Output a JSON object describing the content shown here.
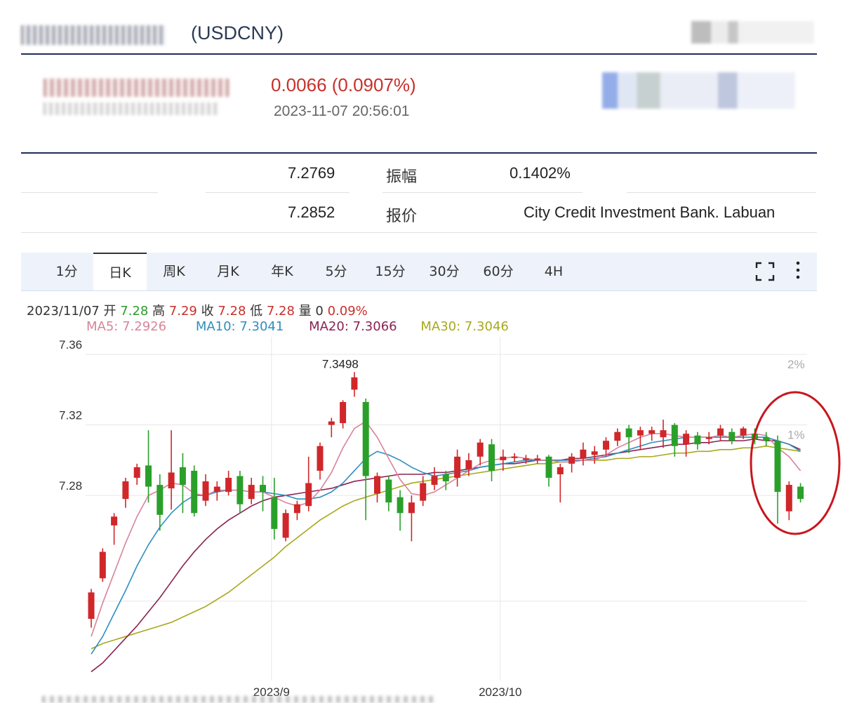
{
  "header": {
    "code": "(USDCNY)"
  },
  "quote": {
    "change": "0.0066 (0.0907%)",
    "datetime": "2023-11-07 20:56:01"
  },
  "stats": {
    "row1": {
      "value": "7.2769",
      "label": "振幅",
      "value2": "0.1402%"
    },
    "row2": {
      "value": "7.2852",
      "label": "报价",
      "value2": "City Credit Investment Bank. Labuan"
    }
  },
  "tabs": [
    {
      "label": "1分"
    },
    {
      "label": "日K"
    },
    {
      "label": "周K"
    },
    {
      "label": "月K"
    },
    {
      "label": "年K"
    },
    {
      "label": "5分"
    },
    {
      "label": "15分"
    },
    {
      "label": "30分"
    },
    {
      "label": "60分"
    },
    {
      "label": "4H"
    }
  ],
  "active_tab": "日K",
  "info": {
    "date": "2023/11/07",
    "open_label": "开",
    "open": "7.28",
    "high_label": "高",
    "high": "7.29",
    "close_label": "收",
    "close": "7.28",
    "low_label": "低",
    "low": "7.28",
    "vol_label": "量",
    "vol": "0",
    "pct": "0.09%"
  },
  "ma": {
    "ma5": "MA5: 7.2926",
    "ma10": "MA10: 7.3041",
    "ma20": "MA20: 7.3066",
    "ma30": "MA30: 7.3046"
  },
  "colors": {
    "up": "#d0272a",
    "down": "#2aa02a",
    "ma5": "#d8849a",
    "ma10": "#2f8fbf",
    "ma20": "#8b2252",
    "ma30": "#a8a81c",
    "header_rule": "#1f2e58",
    "highlight_circle": "#c8161d"
  },
  "icons": {
    "expand": "expand-icon",
    "more": "more-vertical-icon"
  },
  "chart_data": {
    "type": "candlestick",
    "y_ticks": [
      "7.36",
      "7.32",
      "7.28"
    ],
    "ylim": [
      7.175,
      7.37
    ],
    "x_ticks": [
      {
        "label": "2023/9",
        "index": 16
      },
      {
        "label": "2023/10",
        "index": 36
      }
    ],
    "right_ticks": [
      "2%",
      "1%"
    ],
    "annotation_max": "7.3498",
    "highlight_circle": true,
    "candles": [
      [
        7.21,
        7.225,
        7.205,
        7.227
      ],
      [
        7.233,
        7.248,
        7.231,
        7.25
      ],
      [
        7.263,
        7.268,
        7.252,
        7.27
      ],
      [
        7.278,
        7.288,
        7.273,
        7.29
      ],
      [
        7.29,
        7.296,
        7.286,
        7.298
      ],
      [
        7.297,
        7.285,
        7.276,
        7.317
      ],
      [
        7.286,
        7.269,
        7.26,
        7.292
      ],
      [
        7.284,
        7.293,
        7.272,
        7.317
      ],
      [
        7.296,
        7.286,
        7.27,
        7.304
      ],
      [
        7.294,
        7.27,
        7.268,
        7.297
      ],
      [
        7.277,
        7.288,
        7.274,
        7.292
      ],
      [
        7.282,
        7.285,
        7.277,
        7.288
      ],
      [
        7.282,
        7.29,
        7.28,
        7.294
      ],
      [
        7.291,
        7.275,
        7.27,
        7.294
      ],
      [
        7.278,
        7.286,
        7.275,
        7.29
      ],
      [
        7.286,
        7.282,
        7.271,
        7.291
      ],
      [
        7.279,
        7.261,
        7.255,
        7.29
      ],
      [
        7.256,
        7.27,
        7.254,
        7.272
      ],
      [
        7.27,
        7.275,
        7.266,
        7.277
      ],
      [
        7.274,
        7.287,
        7.271,
        7.302
      ],
      [
        7.294,
        7.308,
        7.289,
        7.31
      ],
      [
        7.32,
        7.322,
        7.313,
        7.324
      ],
      [
        7.321,
        7.333,
        7.318,
        7.334
      ],
      [
        7.34,
        7.347,
        7.336,
        7.35
      ],
      [
        7.333,
        7.291,
        7.266,
        7.335
      ],
      [
        7.281,
        7.291,
        7.276,
        7.293
      ],
      [
        7.289,
        7.276,
        7.271,
        7.291
      ],
      [
        7.279,
        7.27,
        7.26,
        7.283
      ],
      [
        7.27,
        7.276,
        7.254,
        7.28
      ],
      [
        7.277,
        7.287,
        7.274,
        7.291
      ],
      [
        7.286,
        7.291,
        7.283,
        7.296
      ],
      [
        7.292,
        7.288,
        7.283,
        7.294
      ],
      [
        7.29,
        7.302,
        7.285,
        7.306
      ],
      [
        7.295,
        7.3,
        7.291,
        7.304
      ],
      [
        7.302,
        7.31,
        7.297,
        7.312
      ],
      [
        7.309,
        7.294,
        7.288,
        7.312
      ],
      [
        7.3,
        7.302,
        7.294,
        7.306
      ],
      [
        7.302,
        7.302,
        7.299,
        7.304
      ],
      [
        7.301,
        7.301,
        7.298,
        7.303
      ],
      [
        7.3,
        7.301,
        7.298,
        7.303
      ],
      [
        7.302,
        7.29,
        7.285,
        7.303
      ],
      [
        7.292,
        7.296,
        7.276,
        7.298
      ],
      [
        7.298,
        7.302,
        7.293,
        7.304
      ],
      [
        7.301,
        7.306,
        7.297,
        7.31
      ],
      [
        7.303,
        7.305,
        7.298,
        7.308
      ],
      [
        7.306,
        7.311,
        7.302,
        7.313
      ],
      [
        7.311,
        7.316,
        7.308,
        7.318
      ],
      [
        7.318,
        7.313,
        7.304,
        7.32
      ],
      [
        7.314,
        7.317,
        7.306,
        7.319
      ],
      [
        7.315,
        7.317,
        7.311,
        7.319
      ],
      [
        7.313,
        7.317,
        7.307,
        7.323
      ],
      [
        7.32,
        7.308,
        7.302,
        7.321
      ],
      [
        7.309,
        7.315,
        7.302,
        7.317
      ],
      [
        7.314,
        7.309,
        7.306,
        7.316
      ],
      [
        7.312,
        7.313,
        7.309,
        7.316
      ],
      [
        7.314,
        7.318,
        7.311,
        7.32
      ],
      [
        7.316,
        7.311,
        7.309,
        7.318
      ],
      [
        7.314,
        7.318,
        7.312,
        7.319
      ],
      [
        7.315,
        7.312,
        7.309,
        7.318
      ],
      [
        7.313,
        7.311,
        7.308,
        7.316
      ],
      [
        7.311,
        7.282,
        7.264,
        7.314
      ],
      [
        7.271,
        7.286,
        7.266,
        7.288
      ],
      [
        7.285,
        7.278,
        7.276,
        7.287
      ]
    ],
    "ma5": [
      7.2,
      7.219,
      7.236,
      7.253,
      7.268,
      7.28,
      7.283,
      7.287,
      7.286,
      7.281,
      7.28,
      7.283,
      7.283,
      7.283,
      7.282,
      7.282,
      7.279,
      7.276,
      7.274,
      7.276,
      7.283,
      7.293,
      7.307,
      7.318,
      7.322,
      7.313,
      7.301,
      7.289,
      7.281,
      7.28,
      7.282,
      7.286,
      7.29,
      7.294,
      7.298,
      7.3,
      7.301,
      7.302,
      7.301,
      7.3,
      7.3,
      7.299,
      7.299,
      7.3,
      7.3,
      7.303,
      7.307,
      7.31,
      7.313,
      7.315,
      7.315,
      7.314,
      7.313,
      7.313,
      7.313,
      7.314,
      7.313,
      7.314,
      7.315,
      7.314,
      7.307,
      7.302,
      7.294
    ],
    "ma10": [
      7.19,
      7.2,
      7.213,
      7.226,
      7.24,
      7.252,
      7.262,
      7.27,
      7.276,
      7.28,
      7.28,
      7.282,
      7.283,
      7.283,
      7.282,
      7.282,
      7.281,
      7.28,
      7.278,
      7.278,
      7.279,
      7.282,
      7.287,
      7.294,
      7.301,
      7.305,
      7.303,
      7.3,
      7.296,
      7.293,
      7.291,
      7.292,
      7.293,
      7.294,
      7.296,
      7.297,
      7.298,
      7.299,
      7.3,
      7.3,
      7.3,
      7.3,
      7.3,
      7.3,
      7.301,
      7.302,
      7.304,
      7.306,
      7.308,
      7.31,
      7.311,
      7.312,
      7.313,
      7.313,
      7.313,
      7.313,
      7.313,
      7.313,
      7.313,
      7.313,
      7.311,
      7.309,
      7.305
    ],
    "ma20": [
      7.18,
      7.185,
      7.192,
      7.199,
      7.206,
      7.214,
      7.222,
      7.231,
      7.24,
      7.248,
      7.255,
      7.261,
      7.266,
      7.27,
      7.274,
      7.277,
      7.279,
      7.28,
      7.281,
      7.282,
      7.283,
      7.284,
      7.286,
      7.288,
      7.289,
      7.29,
      7.291,
      7.292,
      7.292,
      7.292,
      7.293,
      7.293,
      7.294,
      7.295,
      7.296,
      7.297,
      7.298,
      7.298,
      7.299,
      7.3,
      7.3,
      7.3,
      7.301,
      7.301,
      7.302,
      7.303,
      7.304,
      7.305,
      7.306,
      7.307,
      7.308,
      7.309,
      7.309,
      7.31,
      7.31,
      7.311,
      7.311,
      7.311,
      7.312,
      7.311,
      7.311,
      7.309,
      7.306
    ],
    "ma30": [
      7.193,
      7.196,
      7.198,
      7.2,
      7.202,
      7.204,
      7.206,
      7.208,
      7.211,
      7.214,
      7.217,
      7.221,
      7.225,
      7.23,
      7.235,
      7.24,
      7.245,
      7.251,
      7.256,
      7.261,
      7.266,
      7.27,
      7.274,
      7.277,
      7.279,
      7.281,
      7.283,
      7.285,
      7.287,
      7.288,
      7.289,
      7.29,
      7.291,
      7.292,
      7.293,
      7.294,
      7.295,
      7.296,
      7.297,
      7.298,
      7.298,
      7.299,
      7.299,
      7.3,
      7.3,
      7.3,
      7.301,
      7.301,
      7.302,
      7.302,
      7.303,
      7.304,
      7.304,
      7.305,
      7.305,
      7.306,
      7.306,
      7.307,
      7.307,
      7.308,
      7.307,
      7.306,
      7.305
    ]
  }
}
